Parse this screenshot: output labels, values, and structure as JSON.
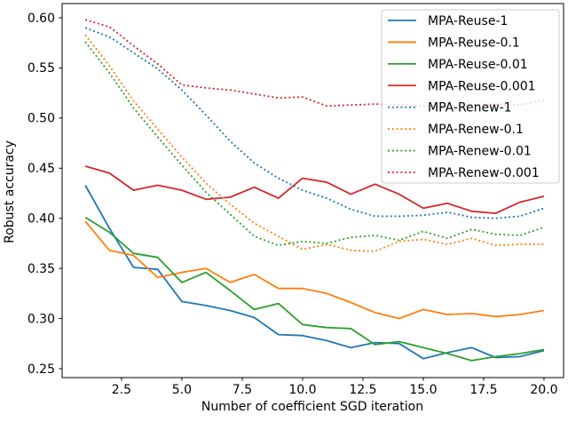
{
  "figure": {
    "kind": "matplotlib line plot",
    "background_color": "#ffffff",
    "spine_color": "#000000"
  },
  "chart_data": {
    "type": "line",
    "title": "",
    "xlabel": "Number of coefficient SGD iteration",
    "ylabel": "Robust accuracy",
    "grid": false,
    "legend_position": "upper right",
    "xlim": [
      0.04,
      20.81
    ],
    "ylim": [
      0.2411,
      0.6142
    ],
    "xticks": {
      "values": [
        2.5,
        5.0,
        7.5,
        10.0,
        12.5,
        15.0,
        17.5,
        20.0
      ],
      "labels": [
        "2.5",
        "5.0",
        "7.5",
        "10.0",
        "12.5",
        "15.0",
        "17.5",
        "20.0"
      ]
    },
    "yticks": {
      "values": [
        0.25,
        0.3,
        0.35,
        0.4,
        0.45,
        0.5,
        0.55,
        0.6
      ],
      "labels": [
        "0.25",
        "0.30",
        "0.35",
        "0.40",
        "0.45",
        "0.50",
        "0.55",
        "0.60"
      ]
    },
    "x": [
      1,
      2,
      3,
      4,
      5,
      6,
      7,
      8,
      9,
      10,
      11,
      12,
      13,
      14,
      15,
      16,
      17,
      18,
      19,
      20
    ],
    "series": [
      {
        "name": "MPA-Reuse-1",
        "color": "#1f77b4",
        "line_style": "solid",
        "values": [
          0.433,
          0.39,
          0.351,
          0.349,
          0.317,
          0.313,
          0.308,
          0.301,
          0.284,
          0.283,
          0.278,
          0.271,
          0.276,
          0.275,
          0.26,
          0.266,
          0.271,
          0.261,
          0.262,
          0.268
        ]
      },
      {
        "name": "MPA-Reuse-0.1",
        "color": "#ff7f0e",
        "line_style": "solid",
        "values": [
          0.397,
          0.368,
          0.363,
          0.341,
          0.346,
          0.35,
          0.336,
          0.344,
          0.33,
          0.33,
          0.325,
          0.316,
          0.306,
          0.3,
          0.309,
          0.304,
          0.305,
          0.302,
          0.304,
          0.308
        ]
      },
      {
        "name": "MPA-Reuse-0.01",
        "color": "#2ca02c",
        "line_style": "solid",
        "values": [
          0.401,
          0.386,
          0.365,
          0.361,
          0.336,
          0.346,
          0.328,
          0.309,
          0.315,
          0.294,
          0.291,
          0.29,
          0.274,
          0.277,
          0.271,
          0.265,
          0.258,
          0.262,
          0.265,
          0.269
        ]
      },
      {
        "name": "MPA-Reuse-0.001",
        "color": "#d62728",
        "line_style": "solid",
        "values": [
          0.452,
          0.445,
          0.428,
          0.433,
          0.428,
          0.419,
          0.421,
          0.431,
          0.42,
          0.44,
          0.436,
          0.424,
          0.434,
          0.424,
          0.41,
          0.415,
          0.407,
          0.405,
          0.416,
          0.422
        ]
      },
      {
        "name": "MPA-Renew-1",
        "color": "#1f77b4",
        "line_style": "dotted",
        "values": [
          0.59,
          0.581,
          0.565,
          0.549,
          0.528,
          0.503,
          0.477,
          0.455,
          0.44,
          0.428,
          0.42,
          0.409,
          0.402,
          0.402,
          0.403,
          0.406,
          0.401,
          0.4,
          0.402,
          0.41
        ]
      },
      {
        "name": "MPA-Renew-0.1",
        "color": "#ff7f0e",
        "line_style": "dotted",
        "values": [
          0.583,
          0.552,
          0.517,
          0.489,
          0.461,
          0.435,
          0.414,
          0.395,
          0.382,
          0.369,
          0.374,
          0.368,
          0.367,
          0.377,
          0.379,
          0.374,
          0.38,
          0.373,
          0.374,
          0.374
        ]
      },
      {
        "name": "MPA-Renew-0.01",
        "color": "#2ca02c",
        "line_style": "dotted",
        "values": [
          0.576,
          0.545,
          0.51,
          0.481,
          0.453,
          0.426,
          0.404,
          0.382,
          0.373,
          0.377,
          0.375,
          0.381,
          0.383,
          0.378,
          0.387,
          0.38,
          0.389,
          0.384,
          0.383,
          0.391
        ]
      },
      {
        "name": "MPA-Renew-0.001",
        "color": "#d62728",
        "line_style": "dotted",
        "values": [
          0.598,
          0.591,
          0.572,
          0.554,
          0.533,
          0.53,
          0.528,
          0.524,
          0.52,
          0.521,
          0.512,
          0.513,
          0.514,
          0.513,
          0.512,
          0.512,
          0.513,
          0.514,
          0.513,
          0.518
        ]
      }
    ]
  }
}
